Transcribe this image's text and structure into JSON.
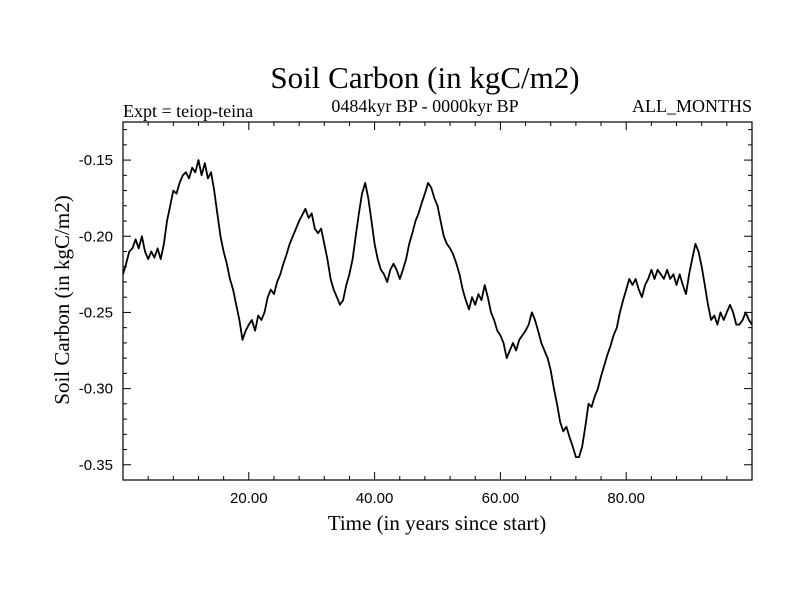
{
  "chart_data": {
    "type": "line",
    "title": "Soil Carbon (in kgC/m2)",
    "subtitle": "0484kyr BP - 0000kyr BP",
    "left_label": "Expt = teiop-teina",
    "right_label": "ALL_MONTHS",
    "xlabel": "Time (in years since start)",
    "ylabel": "Soil Carbon (in kgC/m2)",
    "xlim": [
      0,
      100
    ],
    "ylim": [
      -0.36,
      -0.125
    ],
    "x_ticks": [
      20,
      40,
      60,
      80
    ],
    "x_tick_labels": [
      "20.00",
      "40.00",
      "60.00",
      "80.00"
    ],
    "y_ticks": [
      -0.15,
      -0.2,
      -0.25,
      -0.3,
      -0.35
    ],
    "y_tick_labels": [
      "-0.15",
      "-0.20",
      "-0.25",
      "-0.30",
      "-0.35"
    ],
    "grid": false,
    "series": [
      {
        "color": "#000000",
        "points": [
          [
            0,
            -0.225
          ],
          [
            0.5,
            -0.218
          ],
          [
            1,
            -0.21
          ],
          [
            1.5,
            -0.208
          ],
          [
            2,
            -0.202
          ],
          [
            2.5,
            -0.208
          ],
          [
            3,
            -0.2
          ],
          [
            3.5,
            -0.21
          ],
          [
            4,
            -0.215
          ],
          [
            4.5,
            -0.21
          ],
          [
            5,
            -0.214
          ],
          [
            5.5,
            -0.208
          ],
          [
            6,
            -0.215
          ],
          [
            6.5,
            -0.205
          ],
          [
            7,
            -0.19
          ],
          [
            7.5,
            -0.18
          ],
          [
            8,
            -0.17
          ],
          [
            8.5,
            -0.172
          ],
          [
            9,
            -0.165
          ],
          [
            9.5,
            -0.16
          ],
          [
            10,
            -0.158
          ],
          [
            10.5,
            -0.162
          ],
          [
            11,
            -0.155
          ],
          [
            11.5,
            -0.158
          ],
          [
            12,
            -0.15
          ],
          [
            12.5,
            -0.16
          ],
          [
            13,
            -0.152
          ],
          [
            13.5,
            -0.162
          ],
          [
            14,
            -0.158
          ],
          [
            14.5,
            -0.17
          ],
          [
            15,
            -0.185
          ],
          [
            15.5,
            -0.2
          ],
          [
            16,
            -0.21
          ],
          [
            16.5,
            -0.218
          ],
          [
            17,
            -0.228
          ],
          [
            17.5,
            -0.235
          ],
          [
            18,
            -0.245
          ],
          [
            18.5,
            -0.255
          ],
          [
            19,
            -0.268
          ],
          [
            19.5,
            -0.262
          ],
          [
            20,
            -0.258
          ],
          [
            20.5,
            -0.255
          ],
          [
            21,
            -0.262
          ],
          [
            21.5,
            -0.252
          ],
          [
            22,
            -0.255
          ],
          [
            22.5,
            -0.25
          ],
          [
            23,
            -0.24
          ],
          [
            23.5,
            -0.235
          ],
          [
            24,
            -0.238
          ],
          [
            24.5,
            -0.23
          ],
          [
            25,
            -0.225
          ],
          [
            25.5,
            -0.218
          ],
          [
            26,
            -0.212
          ],
          [
            26.5,
            -0.205
          ],
          [
            27,
            -0.2
          ],
          [
            27.5,
            -0.195
          ],
          [
            28,
            -0.19
          ],
          [
            28.5,
            -0.186
          ],
          [
            29,
            -0.182
          ],
          [
            29.5,
            -0.188
          ],
          [
            30,
            -0.185
          ],
          [
            30.5,
            -0.195
          ],
          [
            31,
            -0.198
          ],
          [
            31.5,
            -0.195
          ],
          [
            32,
            -0.205
          ],
          [
            32.5,
            -0.215
          ],
          [
            33,
            -0.228
          ],
          [
            33.5,
            -0.235
          ],
          [
            34,
            -0.24
          ],
          [
            34.5,
            -0.245
          ],
          [
            35,
            -0.242
          ],
          [
            35.5,
            -0.232
          ],
          [
            36,
            -0.225
          ],
          [
            36.5,
            -0.215
          ],
          [
            37,
            -0.2
          ],
          [
            37.5,
            -0.185
          ],
          [
            38,
            -0.172
          ],
          [
            38.5,
            -0.165
          ],
          [
            39,
            -0.175
          ],
          [
            39.5,
            -0.19
          ],
          [
            40,
            -0.205
          ],
          [
            40.5,
            -0.215
          ],
          [
            41,
            -0.222
          ],
          [
            41.5,
            -0.225
          ],
          [
            42,
            -0.23
          ],
          [
            42.5,
            -0.222
          ],
          [
            43,
            -0.218
          ],
          [
            43.5,
            -0.222
          ],
          [
            44,
            -0.228
          ],
          [
            44.5,
            -0.222
          ],
          [
            45,
            -0.215
          ],
          [
            45.5,
            -0.205
          ],
          [
            46,
            -0.198
          ],
          [
            46.5,
            -0.19
          ],
          [
            47,
            -0.185
          ],
          [
            47.5,
            -0.178
          ],
          [
            48,
            -0.172
          ],
          [
            48.5,
            -0.165
          ],
          [
            49,
            -0.168
          ],
          [
            49.5,
            -0.175
          ],
          [
            50,
            -0.18
          ],
          [
            50.5,
            -0.19
          ],
          [
            51,
            -0.2
          ],
          [
            51.5,
            -0.205
          ],
          [
            52,
            -0.208
          ],
          [
            52.5,
            -0.212
          ],
          [
            53,
            -0.218
          ],
          [
            53.5,
            -0.225
          ],
          [
            54,
            -0.235
          ],
          [
            54.5,
            -0.242
          ],
          [
            55,
            -0.248
          ],
          [
            55.5,
            -0.24
          ],
          [
            56,
            -0.245
          ],
          [
            56.5,
            -0.238
          ],
          [
            57,
            -0.242
          ],
          [
            57.5,
            -0.232
          ],
          [
            58,
            -0.24
          ],
          [
            58.5,
            -0.25
          ],
          [
            59,
            -0.255
          ],
          [
            59.5,
            -0.262
          ],
          [
            60,
            -0.265
          ],
          [
            60.5,
            -0.27
          ],
          [
            61,
            -0.28
          ],
          [
            61.5,
            -0.275
          ],
          [
            62,
            -0.27
          ],
          [
            62.5,
            -0.275
          ],
          [
            63,
            -0.268
          ],
          [
            63.5,
            -0.265
          ],
          [
            64,
            -0.262
          ],
          [
            64.5,
            -0.258
          ],
          [
            65,
            -0.25
          ],
          [
            65.5,
            -0.255
          ],
          [
            66,
            -0.262
          ],
          [
            66.5,
            -0.27
          ],
          [
            67,
            -0.275
          ],
          [
            67.5,
            -0.28
          ],
          [
            68,
            -0.288
          ],
          [
            68.5,
            -0.3
          ],
          [
            69,
            -0.31
          ],
          [
            69.5,
            -0.322
          ],
          [
            70,
            -0.328
          ],
          [
            70.5,
            -0.325
          ],
          [
            71,
            -0.332
          ],
          [
            71.5,
            -0.338
          ],
          [
            72,
            -0.345
          ],
          [
            72.5,
            -0.345
          ],
          [
            73,
            -0.338
          ],
          [
            73.5,
            -0.325
          ],
          [
            74,
            -0.31
          ],
          [
            74.5,
            -0.312
          ],
          [
            75,
            -0.305
          ],
          [
            75.5,
            -0.3
          ],
          [
            76,
            -0.292
          ],
          [
            76.5,
            -0.285
          ],
          [
            77,
            -0.278
          ],
          [
            77.5,
            -0.272
          ],
          [
            78,
            -0.265
          ],
          [
            78.5,
            -0.26
          ],
          [
            79,
            -0.25
          ],
          [
            79.5,
            -0.242
          ],
          [
            80,
            -0.235
          ],
          [
            80.5,
            -0.228
          ],
          [
            81,
            -0.232
          ],
          [
            81.5,
            -0.228
          ],
          [
            82,
            -0.235
          ],
          [
            82.5,
            -0.24
          ],
          [
            83,
            -0.232
          ],
          [
            83.5,
            -0.228
          ],
          [
            84,
            -0.222
          ],
          [
            84.5,
            -0.228
          ],
          [
            85,
            -0.222
          ],
          [
            85.5,
            -0.225
          ],
          [
            86,
            -0.228
          ],
          [
            86.5,
            -0.222
          ],
          [
            87,
            -0.228
          ],
          [
            87.5,
            -0.225
          ],
          [
            88,
            -0.232
          ],
          [
            88.5,
            -0.225
          ],
          [
            89,
            -0.232
          ],
          [
            89.5,
            -0.238
          ],
          [
            90,
            -0.225
          ],
          [
            90.5,
            -0.215
          ],
          [
            91,
            -0.205
          ],
          [
            91.5,
            -0.21
          ],
          [
            92,
            -0.22
          ],
          [
            92.5,
            -0.232
          ],
          [
            93,
            -0.245
          ],
          [
            93.5,
            -0.255
          ],
          [
            94,
            -0.252
          ],
          [
            94.5,
            -0.258
          ],
          [
            95,
            -0.25
          ],
          [
            95.5,
            -0.255
          ],
          [
            96,
            -0.25
          ],
          [
            96.5,
            -0.245
          ],
          [
            97,
            -0.25
          ],
          [
            97.5,
            -0.258
          ],
          [
            98,
            -0.258
          ],
          [
            98.5,
            -0.255
          ],
          [
            99,
            -0.25
          ],
          [
            99.5,
            -0.255
          ],
          [
            100,
            -0.258
          ]
        ]
      }
    ]
  }
}
